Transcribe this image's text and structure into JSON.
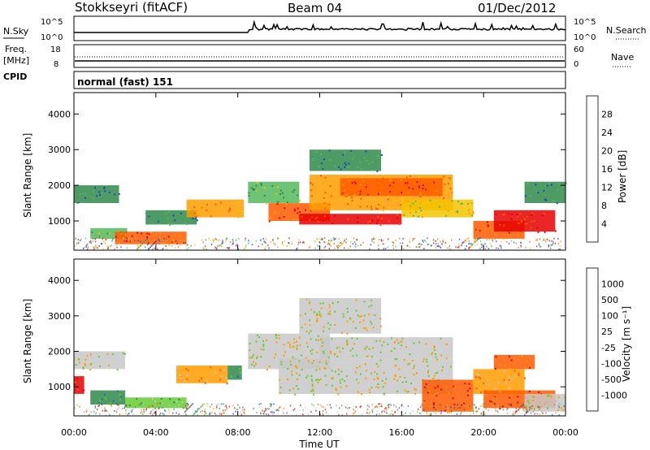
{
  "header": {
    "station": "Stokkseyri (fitACF)",
    "beam": "Beam 04",
    "date": "01/Dec/2012"
  },
  "status_panels": {
    "nsky": {
      "label": "N.Sky",
      "right_label": "N.Search",
      "ticks_left": [
        "10^5",
        "10^0"
      ],
      "ticks_right": [
        "10^5",
        "10^0"
      ]
    },
    "freq": {
      "label_top": "Freq.",
      "label_bottom": "[MHz]",
      "right_label": "Nave",
      "ticks_left": [
        "18",
        "8"
      ],
      "ticks_right": [
        "60",
        "0"
      ]
    },
    "cpid": {
      "label": "CPID",
      "value": "normal (fast) 151"
    }
  },
  "axes": {
    "xlabel": "Time UT",
    "x_ticks": [
      "00:00",
      "04:00",
      "08:00",
      "12:00",
      "16:00",
      "20:00",
      "00:00"
    ],
    "ylabel": "Slant Range [km]",
    "y_ticks": [
      "4000",
      "3000",
      "2000",
      "1000"
    ]
  },
  "colors": {
    "power": [
      "#0033ff",
      "#1f47b8",
      "#2f8a4a",
      "#55b85c",
      "#f5c400",
      "#ff9c00",
      "#ff5a00",
      "#e60000"
    ],
    "velocity": [
      "#e60000",
      "#ff5a00",
      "#ff9c00",
      "#c8c8c8",
      "#66cc33",
      "#2f8a4a",
      "#1f6fb0",
      "#1f3fb8"
    ],
    "status_line": "#000000"
  },
  "chart_data": [
    {
      "type": "heatmap",
      "name": "power",
      "xlabel": "Time UT",
      "ylabel": "Slant Range [km]",
      "colorbar_label": "Power [dB]",
      "colorbar_ticks": [
        "28",
        "24",
        "20",
        "16",
        "12",
        "8",
        "4"
      ],
      "x_range_hours": [
        0,
        24
      ],
      "y_range_km": [
        180,
        4600
      ],
      "regions": [
        {
          "t0": 0.0,
          "t1": 2.2,
          "r0": 1500,
          "r1": 2000,
          "level": 2
        },
        {
          "t0": 0.8,
          "t1": 2.6,
          "r0": 500,
          "r1": 800,
          "level": 3
        },
        {
          "t0": 2.0,
          "t1": 5.5,
          "r0": 350,
          "r1": 700,
          "level": 6
        },
        {
          "t0": 3.5,
          "t1": 6.0,
          "r0": 900,
          "r1": 1300,
          "level": 2
        },
        {
          "t0": 5.5,
          "t1": 8.3,
          "r0": 1100,
          "r1": 1600,
          "level": 5
        },
        {
          "t0": 8.5,
          "t1": 11.0,
          "r0": 1500,
          "r1": 2100,
          "level": 3
        },
        {
          "t0": 9.5,
          "t1": 12.5,
          "r0": 1000,
          "r1": 1500,
          "level": 6
        },
        {
          "t0": 11.0,
          "t1": 16.0,
          "r0": 900,
          "r1": 1200,
          "level": 7
        },
        {
          "t0": 11.5,
          "t1": 18.5,
          "r0": 1300,
          "r1": 2300,
          "level": 5
        },
        {
          "t0": 13.0,
          "t1": 18.0,
          "r0": 1700,
          "r1": 2200,
          "level": 6
        },
        {
          "t0": 16.0,
          "t1": 19.5,
          "r0": 1100,
          "r1": 1600,
          "level": 4
        },
        {
          "t0": 19.5,
          "t1": 22.0,
          "r0": 500,
          "r1": 1000,
          "level": 6
        },
        {
          "t0": 20.5,
          "t1": 23.5,
          "r0": 700,
          "r1": 1300,
          "level": 7
        },
        {
          "t0": 22.0,
          "t1": 24.0,
          "r0": 1500,
          "r1": 2100,
          "level": 2
        },
        {
          "t0": 11.5,
          "t1": 15.0,
          "r0": 2400,
          "r1": 3000,
          "level": 2
        }
      ]
    },
    {
      "type": "heatmap",
      "name": "velocity",
      "xlabel": "Time UT",
      "ylabel": "Slant Range [km]",
      "colorbar_label": "Velocity [m s⁻¹]",
      "colorbar_ticks": [
        "1000",
        "500",
        "100",
        "25",
        "-25",
        "-100",
        "-500",
        "-1000"
      ],
      "x_range_hours": [
        0,
        24
      ],
      "y_range_km": [
        180,
        4600
      ],
      "regions": [
        {
          "t0": 0.0,
          "t1": 2.5,
          "r0": 1500,
          "r1": 2000,
          "level": 3
        },
        {
          "t0": 0.0,
          "t1": 0.5,
          "r0": 800,
          "r1": 1300,
          "level": 0
        },
        {
          "t0": 0.8,
          "t1": 2.5,
          "r0": 500,
          "r1": 900,
          "level": 5
        },
        {
          "t0": 2.5,
          "t1": 5.5,
          "r0": 400,
          "r1": 700,
          "level": 4
        },
        {
          "t0": 5.0,
          "t1": 7.5,
          "r0": 1100,
          "r1": 1600,
          "level": 2
        },
        {
          "t0": 7.5,
          "t1": 8.2,
          "r0": 1200,
          "r1": 1600,
          "level": 5
        },
        {
          "t0": 8.5,
          "t1": 12.5,
          "r0": 1500,
          "r1": 2500,
          "level": 3
        },
        {
          "t0": 10.0,
          "t1": 18.5,
          "r0": 800,
          "r1": 1800,
          "level": 3
        },
        {
          "t0": 12.0,
          "t1": 18.5,
          "r0": 1800,
          "r1": 2400,
          "level": 3
        },
        {
          "t0": 11.0,
          "t1": 15.0,
          "r0": 2500,
          "r1": 3500,
          "level": 3
        },
        {
          "t0": 17.0,
          "t1": 19.5,
          "r0": 300,
          "r1": 1200,
          "level": 1
        },
        {
          "t0": 19.5,
          "t1": 22.0,
          "r0": 800,
          "r1": 1500,
          "level": 2
        },
        {
          "t0": 20.0,
          "t1": 23.5,
          "r0": 400,
          "r1": 900,
          "level": 1
        },
        {
          "t0": 22.0,
          "t1": 24.0,
          "r0": 300,
          "r1": 800,
          "level": 3
        },
        {
          "t0": 20.5,
          "t1": 22.5,
          "r0": 1500,
          "r1": 1900,
          "level": 1
        }
      ]
    }
  ]
}
